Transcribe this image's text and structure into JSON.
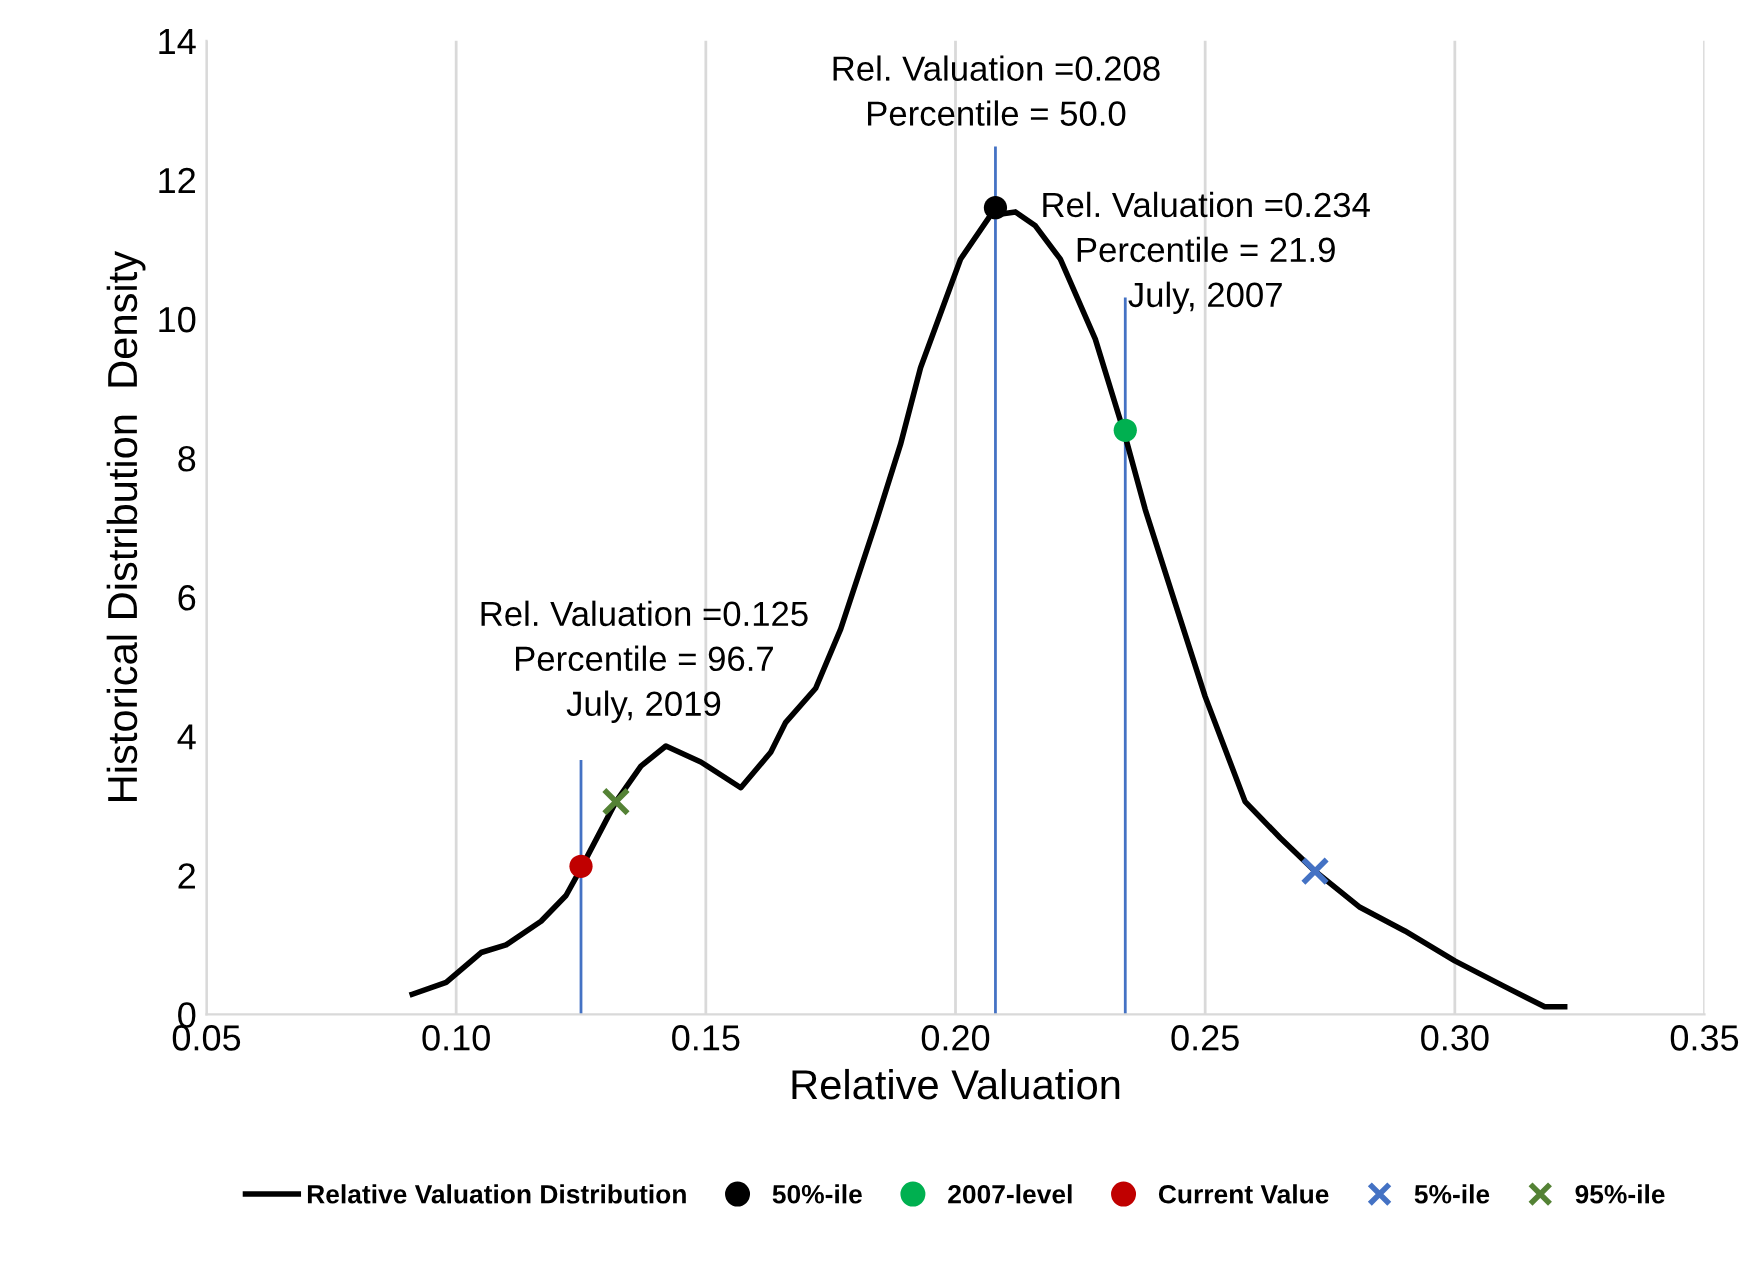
{
  "chart_data": {
    "type": "line",
    "xlabel": "Relative Valuation",
    "ylabel": "Historical Distribution  Density",
    "xlim": [
      0.05,
      0.35
    ],
    "xticks": [
      {
        "value": 0.05,
        "label": "0.05"
      },
      {
        "value": 0.1,
        "label": "0.10"
      },
      {
        "value": 0.15,
        "label": "0.15"
      },
      {
        "value": 0.2,
        "label": "0.20"
      },
      {
        "value": 0.25,
        "label": "0.25"
      },
      {
        "value": 0.3,
        "label": "0.30"
      },
      {
        "value": 0.35,
        "label": "0.35"
      }
    ],
    "ylim": [
      0,
      14
    ],
    "yticks": [
      0,
      2,
      4,
      6,
      8,
      10,
      12,
      14
    ],
    "grid": "x",
    "legend": "bottom",
    "series": [
      {
        "name": "Relative Valuation Distribution",
        "color": "#000000",
        "marker": "none",
        "x": [
          0.0912,
          0.098,
          0.105,
          0.11,
          0.117,
          0.122,
          0.125,
          0.132,
          0.137,
          0.142,
          0.149,
          0.157,
          0.163,
          0.166,
          0.172,
          0.177,
          0.184,
          0.189,
          0.193,
          0.201,
          0.207,
          0.212,
          0.216,
          0.221,
          0.228,
          0.234,
          0.238,
          0.244,
          0.25,
          0.258,
          0.265,
          0.272,
          0.281,
          0.29,
          0.3,
          0.31,
          0.318,
          0.322
        ],
        "values": [
          0.29,
          0.46,
          0.89,
          1.0,
          1.34,
          1.71,
          2.1,
          3.06,
          3.57,
          3.86,
          3.63,
          3.26,
          3.77,
          4.2,
          4.69,
          5.54,
          7.06,
          8.2,
          9.3,
          10.86,
          11.49,
          11.54,
          11.34,
          10.86,
          9.71,
          8.31,
          7.26,
          5.91,
          4.57,
          3.06,
          2.54,
          2.06,
          1.54,
          1.2,
          0.77,
          0.4,
          0.11,
          0.11
        ]
      },
      {
        "name": "50%-ile",
        "type": "scatter",
        "color": "#000000",
        "marker": "circle",
        "x": [
          0.208
        ],
        "values": [
          11.6
        ]
      },
      {
        "name": "2007-level",
        "type": "scatter",
        "color": "#00b050",
        "marker": "circle",
        "x": [
          0.234
        ],
        "values": [
          8.4
        ]
      },
      {
        "name": "Current Value",
        "type": "scatter",
        "color": "#c00000",
        "marker": "circle",
        "x": [
          0.125
        ],
        "values": [
          2.13
        ]
      },
      {
        "name": "5%-ile",
        "type": "scatter",
        "color": "#4472c4",
        "marker": "cross",
        "x": [
          0.272
        ],
        "values": [
          2.06
        ]
      },
      {
        "name": "95%-ile",
        "type": "scatter",
        "color": "#548235",
        "marker": "cross",
        "x": [
          0.132
        ],
        "values": [
          3.06
        ]
      }
    ],
    "ref_lines": [
      {
        "axis": "x",
        "value": 0.208,
        "color": "#4472c4"
      },
      {
        "axis": "x",
        "value": 0.234,
        "color": "#4472c4"
      },
      {
        "axis": "x",
        "value": 0.125,
        "color": "#4472c4"
      }
    ],
    "annotations": [
      "Rel. Valuation =0.208\nPercentile = 50.0",
      "Rel. Valuation =0.234\nPercentile = 21.9\nJuly, 2007",
      "Rel. Valuation =0.125\nPercentile = 96.7\nJuly, 2019"
    ]
  }
}
